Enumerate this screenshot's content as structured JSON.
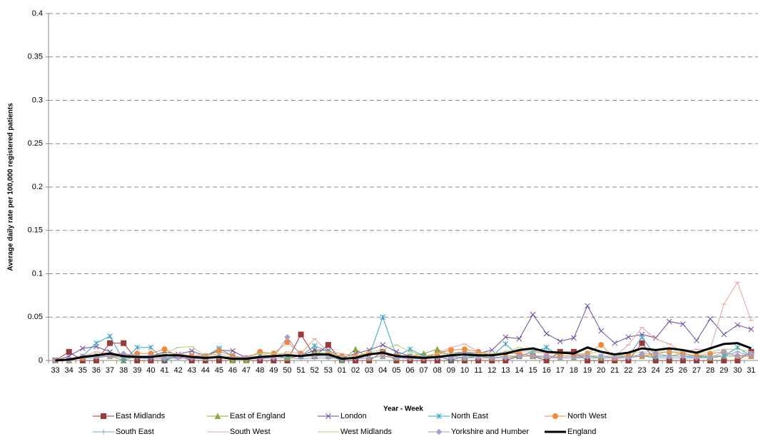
{
  "chart_data": {
    "type": "line",
    "y_label": "Average daily rate per 100,000 registered patients",
    "x_label": "Year - Week",
    "categories": [
      "33",
      "34",
      "35",
      "36",
      "37",
      "38",
      "39",
      "40",
      "41",
      "42",
      "43",
      "44",
      "45",
      "46",
      "47",
      "48",
      "49",
      "50",
      "51",
      "52",
      "53",
      "01",
      "02",
      "03",
      "04",
      "05",
      "06",
      "07",
      "08",
      "09",
      "10",
      "11",
      "12",
      "13",
      "14",
      "15",
      "16",
      "17",
      "18",
      "19",
      "20",
      "21",
      "22",
      "23",
      "24",
      "25",
      "26",
      "27",
      "28",
      "29",
      "30",
      "31"
    ],
    "ylim": [
      0,
      0.4
    ],
    "yticks": [
      0,
      0.05,
      0.1,
      0.15,
      0.2,
      0.25,
      0.3,
      0.35,
      0.4
    ],
    "grid": true,
    "legend": "bottom",
    "series": [
      {
        "name": "East Midlands",
        "color": "#9b3a3a",
        "marker": "square",
        "values": [
          0,
          0.01,
          0,
          0,
          0.02,
          0.02,
          0,
          0,
          0,
          0.005,
          0,
          0,
          0,
          0,
          0,
          0,
          0,
          0,
          0.03,
          0.005,
          0.018,
          0,
          0,
          0,
          0.01,
          0,
          0,
          0,
          0,
          0,
          0,
          0,
          0,
          0,
          0.005,
          0.005,
          0,
          0.01,
          0.01,
          0,
          0,
          0,
          0,
          0.02,
          0,
          0,
          0,
          0,
          0,
          0,
          0,
          0.01
        ]
      },
      {
        "name": "East of England",
        "color": "#8aaa3c",
        "marker": "triangle",
        "values": [
          0,
          0,
          0.003,
          0.005,
          0.005,
          0,
          0.005,
          0.005,
          0.003,
          0.005,
          0.005,
          0.003,
          0.005,
          0,
          0,
          0.005,
          0.005,
          0.003,
          0.005,
          0.012,
          0.005,
          0,
          0.013,
          0.003,
          0.005,
          0.003,
          0.005,
          0.008,
          0.013,
          0.005,
          0.003,
          0.005,
          0.003,
          0.005,
          0.005,
          0.005,
          0.005,
          0.003,
          0.003,
          0.005,
          0.003,
          0.003,
          0.005,
          0.005,
          0.005,
          0.005,
          0.008,
          0.005,
          0.003,
          0.005,
          0.005,
          0.005
        ]
      },
      {
        "name": "London",
        "color": "#6e4b9e",
        "marker": "x",
        "values": [
          0,
          0.005,
          0.014,
          0.016,
          0.01,
          0.003,
          0.005,
          0.005,
          0.01,
          0.007,
          0.011,
          0.005,
          0.012,
          0.011,
          0.003,
          0.005,
          0.005,
          0.005,
          0.005,
          0.012,
          0.012,
          0.003,
          0.008,
          0.012,
          0.018,
          0.01,
          0.005,
          0.005,
          0.008,
          0.008,
          0.01,
          0.008,
          0.012,
          0.027,
          0.025,
          0.053,
          0.031,
          0.022,
          0.026,
          0.063,
          0.034,
          0.02,
          0.027,
          0.03,
          0.026,
          0.045,
          0.042,
          0.023,
          0.048,
          0.03,
          0.041,
          0.036
        ]
      },
      {
        "name": "North East",
        "color": "#3aa1c0",
        "marker": "star",
        "values": [
          0,
          0,
          0.005,
          0.02,
          0.028,
          0,
          0.015,
          0.015,
          0,
          0.005,
          0.005,
          0.005,
          0.014,
          0.005,
          0.003,
          0.005,
          0.005,
          0.005,
          0.005,
          0.017,
          0.01,
          0,
          0.005,
          0.005,
          0.05,
          0.005,
          0.013,
          0.005,
          0.005,
          0,
          0.005,
          0.005,
          0.005,
          0.019,
          0.005,
          0.01,
          0.015,
          0.005,
          0.005,
          0.005,
          0.005,
          0.005,
          0.005,
          0.027,
          0.005,
          0.005,
          0.005,
          0.005,
          0.005,
          0.005,
          0.015,
          0.005
        ]
      },
      {
        "name": "North West",
        "color": "#f0883b",
        "marker": "circle",
        "values": [
          0,
          0,
          0.003,
          0.005,
          0.005,
          0.005,
          0.008,
          0.008,
          0.013,
          0.005,
          0.005,
          0.005,
          0.011,
          0.005,
          0.003,
          0.01,
          0.008,
          0.021,
          0.008,
          0.005,
          0.008,
          0.005,
          0.005,
          0.008,
          0.008,
          0.005,
          0.003,
          0.003,
          0.008,
          0.012,
          0.013,
          0.01,
          0.005,
          0.008,
          0.008,
          0.005,
          0.005,
          0.005,
          0.005,
          0.008,
          0.018,
          0.003,
          0.005,
          0.005,
          0.008,
          0.01,
          0.008,
          0.005,
          0.008,
          0.01,
          0.005,
          0.005
        ]
      },
      {
        "name": "South East",
        "color": "#7fa3d1",
        "marker": "plus",
        "values": [
          0,
          0.002,
          0.003,
          0.003,
          0.005,
          0.003,
          0.003,
          0.002,
          0.002,
          0.003,
          0.002,
          0.002,
          0.003,
          0.002,
          0.002,
          0.002,
          0.003,
          0.003,
          0.002,
          0.003,
          0.003,
          0.002,
          0.002,
          0.003,
          0.005,
          0.003,
          0.002,
          0.002,
          0.003,
          0.003,
          0.003,
          0.003,
          0.003,
          0.003,
          0.005,
          0.005,
          0.003,
          0.003,
          0.003,
          0.003,
          0.003,
          0.003,
          0.003,
          0.005,
          0.003,
          0.003,
          0.003,
          0.003,
          0.005,
          0.005,
          0.01,
          0.005
        ]
      },
      {
        "name": "South West",
        "color": "#e8a09c",
        "marker": "dash",
        "values": [
          0,
          0,
          0.005,
          0.01,
          0.008,
          0.008,
          0.005,
          0.005,
          0.005,
          0.008,
          0.005,
          0.008,
          0.005,
          0.003,
          0.005,
          0.008,
          0.005,
          0.01,
          0.008,
          0.025,
          0.01,
          0.008,
          0.005,
          0.01,
          0.005,
          0.005,
          0.005,
          0.005,
          0.008,
          0.015,
          0.019,
          0.01,
          0.008,
          0.01,
          0.01,
          0.01,
          0.008,
          0.008,
          0.008,
          0.005,
          0.005,
          0.005,
          0.018,
          0.038,
          0.025,
          0.019,
          0.01,
          0.013,
          0.013,
          0.065,
          0.09,
          0.046
        ]
      },
      {
        "name": "West Midlands",
        "color": "#b6cf7e",
        "marker": "dash",
        "values": [
          0,
          0,
          0.005,
          0.005,
          0.008,
          0.005,
          0.005,
          0.005,
          0.008,
          0.015,
          0.016,
          0.005,
          0.008,
          0.003,
          0.003,
          0.008,
          0.008,
          0.008,
          0.005,
          0.008,
          0.01,
          0.005,
          0.005,
          0.01,
          0.012,
          0.018,
          0.01,
          0.005,
          0.008,
          0.008,
          0.008,
          0.008,
          0.008,
          0.01,
          0.015,
          0.01,
          0.01,
          0.008,
          0.008,
          0.008,
          0.01,
          0.005,
          0.008,
          0.01,
          0.01,
          0.01,
          0.01,
          0.008,
          0.01,
          0.013,
          0.013,
          0.01
        ]
      },
      {
        "name": "Yorkshire and Humber",
        "color": "#a79ec9",
        "marker": "diamond",
        "values": [
          0,
          0,
          0.005,
          0.005,
          0.005,
          0.008,
          0.005,
          0.005,
          0.003,
          0.003,
          0.003,
          0.003,
          0.005,
          0.003,
          0.003,
          0.003,
          0.003,
          0.027,
          0.005,
          0.005,
          0.005,
          0.003,
          0.003,
          0.003,
          0.005,
          0.003,
          0.003,
          0.003,
          0.003,
          0.003,
          0.003,
          0.003,
          0.003,
          0.003,
          0.005,
          0.005,
          0.005,
          0.003,
          0.003,
          0.005,
          0.005,
          0.003,
          0.003,
          0.008,
          0.008,
          0.005,
          0.005,
          0.003,
          0.003,
          0.01,
          0.005,
          0.008
        ]
      },
      {
        "name": "England",
        "color": "#000000",
        "values": [
          0,
          0.001,
          0.004,
          0.006,
          0.008,
          0.005,
          0.004,
          0.004,
          0.006,
          0.006,
          0.004,
          0.003,
          0.004,
          0.002,
          0.002,
          0.004,
          0.005,
          0.006,
          0.005,
          0.007,
          0.007,
          0.002,
          0.003,
          0.007,
          0.009,
          0.005,
          0.004,
          0.003,
          0.004,
          0.006,
          0.007,
          0.006,
          0.006,
          0.008,
          0.012,
          0.014,
          0.01,
          0.009,
          0.008,
          0.015,
          0.01,
          0.007,
          0.009,
          0.014,
          0.012,
          0.014,
          0.012,
          0.009,
          0.014,
          0.019,
          0.02,
          0.014
        ]
      }
    ]
  }
}
